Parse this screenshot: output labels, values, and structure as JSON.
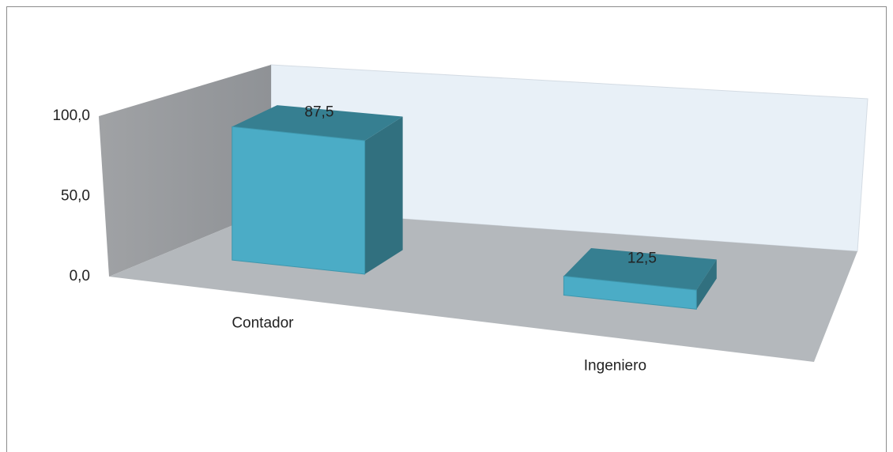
{
  "chart_data": {
    "type": "bar3d",
    "categories": [
      "Contador",
      "Ingeniero"
    ],
    "values": [
      87.5,
      12.5
    ],
    "value_labels": [
      "87,5",
      "12,5"
    ],
    "color": "#4bacc6",
    "ylim": [
      0,
      100
    ],
    "yticks": [
      {
        "value": 0,
        "label": "0,0"
      },
      {
        "value": 50,
        "label": "50,0"
      },
      {
        "value": 100,
        "label": "100,0"
      }
    ],
    "grid": false
  }
}
